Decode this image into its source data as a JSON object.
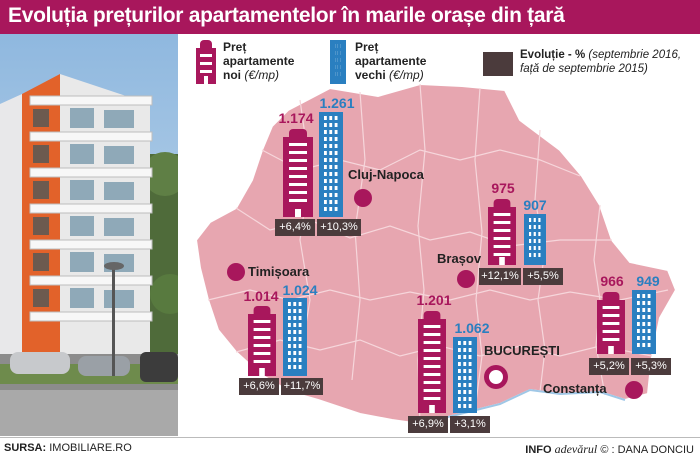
{
  "header": {
    "title": "Evoluția prețurilor apartamentelor în marile orașe din țară"
  },
  "legend": {
    "new_bold": "Preț apartamente noi",
    "new_unit": "(€/mp)",
    "old_bold": "Preț apartamente vechi",
    "old_unit": "(€/mp)",
    "evo_bold": "Evoluție - %",
    "evo_detail": "(septembrie 2016, față de septembrie 2015)"
  },
  "colors": {
    "new": "#a8175c",
    "old": "#2a7fc0",
    "evolution_box": "#4b3b3c",
    "map_fill": "#e7a6b0",
    "city_dot": "#a8175c"
  },
  "cities": [
    {
      "name": "Cluj-Napoca",
      "new_price": "1.174",
      "old_price": "1.261",
      "new_evo": "+6,4%",
      "old_evo": "+10,3%"
    },
    {
      "name": "Brașov",
      "new_price": "975",
      "old_price": "907",
      "new_evo": "+12,1%",
      "old_evo": "+5,5%"
    },
    {
      "name": "Timișoara",
      "new_price": "1.014",
      "old_price": "1.024",
      "new_evo": "+6,6%",
      "old_evo": "+11,7%"
    },
    {
      "name": "BUCUREȘTI",
      "new_price": "1.201",
      "old_price": "1.062",
      "new_evo": "+6,9%",
      "old_evo": "+3,1%"
    },
    {
      "name": "Constanța",
      "new_price": "966",
      "old_price": "949",
      "new_evo": "+5,2%",
      "old_evo": "+5,3%"
    }
  ],
  "footer": {
    "source_label": "SURSA:",
    "source_value": "IMOBILIARE.RO",
    "info_label": "INFO",
    "brand": "adevărul",
    "credit": "© : DANA DONCIU"
  }
}
